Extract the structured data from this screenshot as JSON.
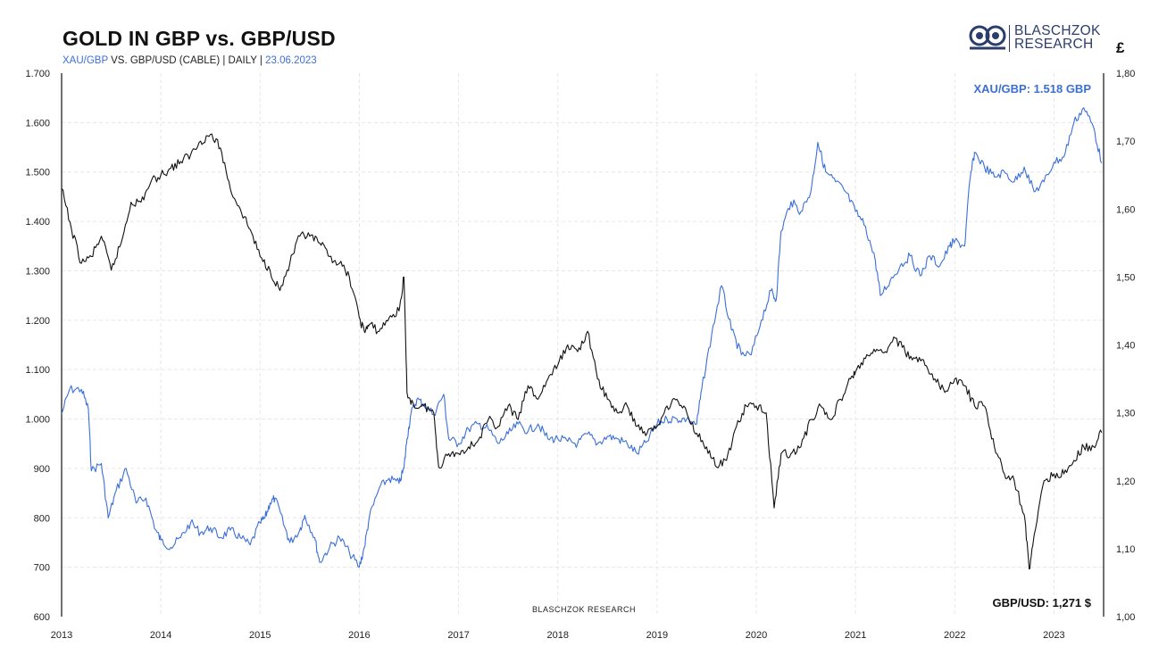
{
  "header": {
    "title": "GOLD IN GBP vs. GBP/USD",
    "subtitle_blue": "XAU/GBP",
    "subtitle_mid": " VS. GBP/USD (CABLE) | DAILY | ",
    "subtitle_date": "23.06.2023"
  },
  "logo": {
    "line1": "BLASCHZOK",
    "line2": "RESEARCH",
    "icon": "owl-logo-icon",
    "color": "#2b3d6b"
  },
  "right_axis_unit": "£",
  "watermark": "BLASCHZOK  RESEARCH",
  "chart_data": {
    "type": "line",
    "x_ticks": [
      "2013",
      "2014",
      "2015",
      "2016",
      "2017",
      "2018",
      "2019",
      "2020",
      "2021",
      "2022",
      "2023"
    ],
    "x_range": [
      2013.0,
      2023.5
    ],
    "y_left": {
      "ticks": [
        "1.700",
        "1.600",
        "1.500",
        "1.400",
        "1.300",
        "1.200",
        "1.100",
        "1.000",
        "900",
        "800",
        "700",
        "600"
      ],
      "range": [
        600,
        1700
      ]
    },
    "y_right": {
      "ticks": [
        "1,80",
        "1,70",
        "1,60",
        "1,50",
        "1,40",
        "1,30",
        "1,20",
        "1,10",
        "1,00"
      ],
      "range": [
        1.0,
        1.8
      ]
    },
    "grid": true,
    "series": [
      {
        "name": "XAU/GBP",
        "axis": "left",
        "color": "#3b6fd8",
        "last_label": "XAU/GBP: 1.518 GBP",
        "points": [
          [
            2013.0,
            1010
          ],
          [
            2013.08,
            1060
          ],
          [
            2013.2,
            1060
          ],
          [
            2013.27,
            1020
          ],
          [
            2013.3,
            895
          ],
          [
            2013.4,
            910
          ],
          [
            2013.47,
            800
          ],
          [
            2013.55,
            855
          ],
          [
            2013.65,
            900
          ],
          [
            2013.75,
            830
          ],
          [
            2013.85,
            840
          ],
          [
            2013.95,
            775
          ],
          [
            2014.0,
            755
          ],
          [
            2014.1,
            740
          ],
          [
            2014.2,
            760
          ],
          [
            2014.3,
            790
          ],
          [
            2014.4,
            770
          ],
          [
            2014.5,
            780
          ],
          [
            2014.6,
            760
          ],
          [
            2014.7,
            775
          ],
          [
            2014.8,
            760
          ],
          [
            2014.9,
            745
          ],
          [
            2015.0,
            790
          ],
          [
            2015.05,
            800
          ],
          [
            2015.1,
            830
          ],
          [
            2015.15,
            840
          ],
          [
            2015.25,
            780
          ],
          [
            2015.3,
            750
          ],
          [
            2015.4,
            775
          ],
          [
            2015.45,
            805
          ],
          [
            2015.55,
            760
          ],
          [
            2015.6,
            710
          ],
          [
            2015.7,
            740
          ],
          [
            2015.8,
            760
          ],
          [
            2015.9,
            730
          ],
          [
            2016.0,
            700
          ],
          [
            2016.05,
            740
          ],
          [
            2016.1,
            800
          ],
          [
            2016.2,
            860
          ],
          [
            2016.3,
            880
          ],
          [
            2016.4,
            870
          ],
          [
            2016.45,
            900
          ],
          [
            2016.48,
            960
          ],
          [
            2016.52,
            1010
          ],
          [
            2016.58,
            1040
          ],
          [
            2016.65,
            1030
          ],
          [
            2016.75,
            1010
          ],
          [
            2016.85,
            1050
          ],
          [
            2016.9,
            960
          ],
          [
            2017.0,
            950
          ],
          [
            2017.1,
            980
          ],
          [
            2017.2,
            990
          ],
          [
            2017.3,
            980
          ],
          [
            2017.4,
            950
          ],
          [
            2017.5,
            970
          ],
          [
            2017.6,
            990
          ],
          [
            2017.7,
            975
          ],
          [
            2017.8,
            990
          ],
          [
            2017.9,
            960
          ],
          [
            2018.0,
            960
          ],
          [
            2018.1,
            955
          ],
          [
            2018.2,
            950
          ],
          [
            2018.3,
            970
          ],
          [
            2018.4,
            950
          ],
          [
            2018.5,
            965
          ],
          [
            2018.6,
            960
          ],
          [
            2018.7,
            950
          ],
          [
            2018.8,
            930
          ],
          [
            2018.9,
            955
          ],
          [
            2019.0,
            990
          ],
          [
            2019.1,
            1000
          ],
          [
            2019.2,
            1000
          ],
          [
            2019.3,
            1000
          ],
          [
            2019.4,
            990
          ],
          [
            2019.45,
            1060
          ],
          [
            2019.55,
            1170
          ],
          [
            2019.65,
            1270
          ],
          [
            2019.75,
            1180
          ],
          [
            2019.85,
            1130
          ],
          [
            2019.95,
            1130
          ],
          [
            2020.05,
            1200
          ],
          [
            2020.15,
            1260
          ],
          [
            2020.2,
            1240
          ],
          [
            2020.25,
            1380
          ],
          [
            2020.35,
            1440
          ],
          [
            2020.45,
            1420
          ],
          [
            2020.55,
            1460
          ],
          [
            2020.62,
            1560
          ],
          [
            2020.7,
            1500
          ],
          [
            2020.8,
            1480
          ],
          [
            2020.9,
            1460
          ],
          [
            2021.0,
            1420
          ],
          [
            2021.1,
            1390
          ],
          [
            2021.2,
            1320
          ],
          [
            2021.25,
            1250
          ],
          [
            2021.35,
            1280
          ],
          [
            2021.45,
            1310
          ],
          [
            2021.55,
            1330
          ],
          [
            2021.65,
            1290
          ],
          [
            2021.75,
            1330
          ],
          [
            2021.85,
            1310
          ],
          [
            2021.95,
            1350
          ],
          [
            2022.0,
            1360
          ],
          [
            2022.1,
            1350
          ],
          [
            2022.15,
            1480
          ],
          [
            2022.2,
            1540
          ],
          [
            2022.3,
            1510
          ],
          [
            2022.4,
            1490
          ],
          [
            2022.5,
            1500
          ],
          [
            2022.6,
            1480
          ],
          [
            2022.7,
            1510
          ],
          [
            2022.8,
            1460
          ],
          [
            2022.9,
            1480
          ],
          [
            2023.0,
            1520
          ],
          [
            2023.1,
            1530
          ],
          [
            2023.2,
            1600
          ],
          [
            2023.3,
            1630
          ],
          [
            2023.4,
            1590
          ],
          [
            2023.48,
            1518
          ]
        ]
      },
      {
        "name": "GBP/USD",
        "axis": "right",
        "color": "#111111",
        "last_label": "GBP/USD: 1,271 $",
        "points": [
          [
            2013.0,
            1.63
          ],
          [
            2013.1,
            1.57
          ],
          [
            2013.2,
            1.52
          ],
          [
            2013.3,
            1.53
          ],
          [
            2013.4,
            1.56
          ],
          [
            2013.5,
            1.51
          ],
          [
            2013.6,
            1.55
          ],
          [
            2013.7,
            1.61
          ],
          [
            2013.8,
            1.61
          ],
          [
            2013.9,
            1.64
          ],
          [
            2014.0,
            1.65
          ],
          [
            2014.1,
            1.66
          ],
          [
            2014.2,
            1.67
          ],
          [
            2014.3,
            1.68
          ],
          [
            2014.4,
            1.7
          ],
          [
            2014.5,
            1.71
          ],
          [
            2014.6,
            1.69
          ],
          [
            2014.7,
            1.63
          ],
          [
            2014.8,
            1.6
          ],
          [
            2014.9,
            1.57
          ],
          [
            2015.0,
            1.53
          ],
          [
            2015.1,
            1.51
          ],
          [
            2015.2,
            1.48
          ],
          [
            2015.3,
            1.52
          ],
          [
            2015.4,
            1.56
          ],
          [
            2015.5,
            1.56
          ],
          [
            2015.6,
            1.55
          ],
          [
            2015.7,
            1.53
          ],
          [
            2015.8,
            1.52
          ],
          [
            2015.9,
            1.5
          ],
          [
            2016.0,
            1.44
          ],
          [
            2016.05,
            1.42
          ],
          [
            2016.1,
            1.43
          ],
          [
            2016.2,
            1.42
          ],
          [
            2016.3,
            1.44
          ],
          [
            2016.4,
            1.45
          ],
          [
            2016.45,
            1.5
          ],
          [
            2016.48,
            1.33
          ],
          [
            2016.55,
            1.31
          ],
          [
            2016.65,
            1.31
          ],
          [
            2016.75,
            1.3
          ],
          [
            2016.8,
            1.22
          ],
          [
            2016.9,
            1.24
          ],
          [
            2017.0,
            1.24
          ],
          [
            2017.1,
            1.25
          ],
          [
            2017.2,
            1.26
          ],
          [
            2017.3,
            1.29
          ],
          [
            2017.4,
            1.28
          ],
          [
            2017.5,
            1.31
          ],
          [
            2017.6,
            1.29
          ],
          [
            2017.7,
            1.34
          ],
          [
            2017.8,
            1.32
          ],
          [
            2017.9,
            1.35
          ],
          [
            2018.0,
            1.37
          ],
          [
            2018.1,
            1.4
          ],
          [
            2018.2,
            1.39
          ],
          [
            2018.3,
            1.42
          ],
          [
            2018.4,
            1.35
          ],
          [
            2018.5,
            1.32
          ],
          [
            2018.6,
            1.3
          ],
          [
            2018.7,
            1.31
          ],
          [
            2018.8,
            1.28
          ],
          [
            2018.9,
            1.27
          ],
          [
            2019.0,
            1.28
          ],
          [
            2019.1,
            1.31
          ],
          [
            2019.2,
            1.32
          ],
          [
            2019.3,
            1.3
          ],
          [
            2019.4,
            1.27
          ],
          [
            2019.5,
            1.25
          ],
          [
            2019.6,
            1.22
          ],
          [
            2019.7,
            1.23
          ],
          [
            2019.8,
            1.28
          ],
          [
            2019.9,
            1.31
          ],
          [
            2020.0,
            1.31
          ],
          [
            2020.1,
            1.3
          ],
          [
            2020.18,
            1.16
          ],
          [
            2020.25,
            1.24
          ],
          [
            2020.35,
            1.24
          ],
          [
            2020.45,
            1.25
          ],
          [
            2020.55,
            1.29
          ],
          [
            2020.65,
            1.31
          ],
          [
            2020.75,
            1.29
          ],
          [
            2020.85,
            1.32
          ],
          [
            2020.95,
            1.35
          ],
          [
            2021.0,
            1.36
          ],
          [
            2021.1,
            1.38
          ],
          [
            2021.2,
            1.39
          ],
          [
            2021.3,
            1.39
          ],
          [
            2021.4,
            1.41
          ],
          [
            2021.5,
            1.39
          ],
          [
            2021.6,
            1.38
          ],
          [
            2021.7,
            1.37
          ],
          [
            2021.8,
            1.35
          ],
          [
            2021.9,
            1.33
          ],
          [
            2022.0,
            1.35
          ],
          [
            2022.1,
            1.34
          ],
          [
            2022.2,
            1.31
          ],
          [
            2022.3,
            1.31
          ],
          [
            2022.4,
            1.25
          ],
          [
            2022.5,
            1.21
          ],
          [
            2022.6,
            1.2
          ],
          [
            2022.7,
            1.15
          ],
          [
            2022.75,
            1.07
          ],
          [
            2022.8,
            1.12
          ],
          [
            2022.9,
            1.2
          ],
          [
            2023.0,
            1.21
          ],
          [
            2023.1,
            1.21
          ],
          [
            2023.2,
            1.23
          ],
          [
            2023.3,
            1.25
          ],
          [
            2023.4,
            1.25
          ],
          [
            2023.48,
            1.271
          ]
        ]
      }
    ]
  }
}
